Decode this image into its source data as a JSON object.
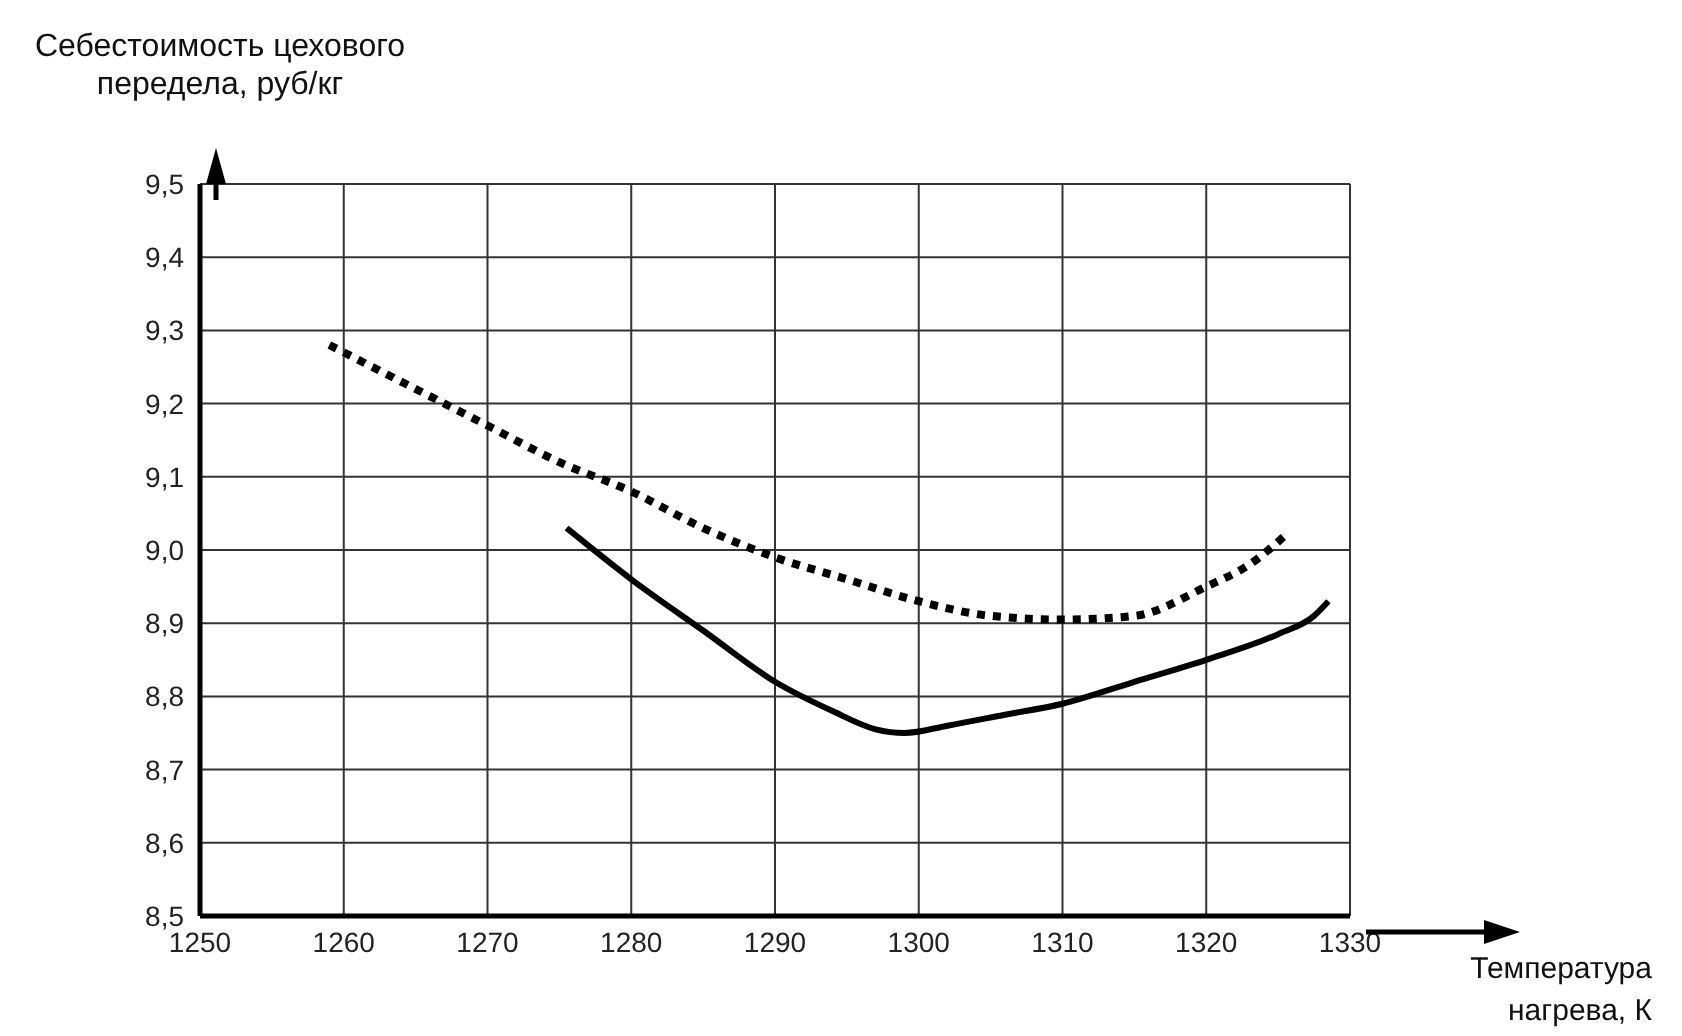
{
  "chart_data": {
    "type": "line",
    "xlabel": "Температура нагрева, К",
    "ylabel": "Себестоимость цехового передела, руб/кг",
    "xlim": [
      1250,
      1330
    ],
    "xticks": [
      1250,
      1260,
      1270,
      1280,
      1290,
      1300,
      1310,
      1320,
      1330
    ],
    "ylim": [
      8.5,
      9.5
    ],
    "yticks": [
      {
        "value": 8.5,
        "label": "8,5"
      },
      {
        "value": 8.6,
        "label": "8,6"
      },
      {
        "value": 8.7,
        "label": "8,7"
      },
      {
        "value": 8.8,
        "label": "8,8"
      },
      {
        "value": 8.9,
        "label": "8,9"
      },
      {
        "value": 9.0,
        "label": "9,0"
      },
      {
        "value": 9.1,
        "label": "9,1"
      },
      {
        "value": 9.2,
        "label": "9,2"
      },
      {
        "value": 9.3,
        "label": "9,3"
      },
      {
        "value": 9.4,
        "label": "9,4"
      },
      {
        "value": 9.5,
        "label": "9,5"
      }
    ],
    "grid": true,
    "marker": "none",
    "series": [
      {
        "color": "#000000",
        "line_style": "dotted",
        "x": [
          1259,
          1265,
          1270,
          1275,
          1280,
          1285,
          1290,
          1295,
          1300,
          1305,
          1310,
          1315,
          1320,
          1323,
          1325.5
        ],
        "values": [
          9.28,
          9.22,
          9.17,
          9.12,
          9.08,
          9.03,
          8.99,
          8.96,
          8.93,
          8.91,
          8.905,
          8.91,
          8.95,
          8.98,
          9.02
        ]
      },
      {
        "color": "#000000",
        "line_style": "solid",
        "x": [
          1275.5,
          1280,
          1285,
          1290,
          1294,
          1297,
          1299,
          1302,
          1306,
          1310,
          1315,
          1320,
          1325,
          1327.5,
          1328.5
        ],
        "values": [
          9.03,
          8.96,
          8.89,
          8.82,
          8.78,
          8.755,
          8.75,
          8.76,
          8.775,
          8.79,
          8.82,
          8.85,
          8.885,
          8.91,
          8.93
        ]
      }
    ]
  }
}
